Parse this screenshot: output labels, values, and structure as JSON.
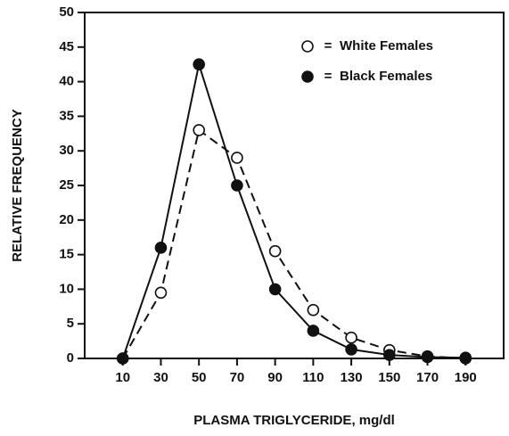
{
  "chart_data": {
    "type": "line",
    "x_label": "PLASMA TRIGLYCERIDE, mg/dl",
    "y_label": "RELATIVE FREQUENCY",
    "x": [
      10,
      30,
      50,
      70,
      90,
      110,
      130,
      150,
      170,
      190
    ],
    "series": [
      {
        "name": "White Females",
        "color": "#111111",
        "dashed": true,
        "marker": "open",
        "values": [
          0,
          9.5,
          33,
          29,
          15.5,
          7,
          3,
          1.2,
          0.3,
          0
        ]
      },
      {
        "name": "Black Females",
        "color": "#111111",
        "dashed": false,
        "marker": "filled",
        "values": [
          0,
          16,
          42.5,
          25,
          10,
          4,
          1.3,
          0.5,
          0.2,
          0.1
        ]
      }
    ],
    "legend_separator": "=",
    "legend": "upper right",
    "xlim": [
      -10,
      210
    ],
    "ylim": [
      0,
      50
    ],
    "xticks": [
      10,
      30,
      50,
      70,
      90,
      110,
      130,
      150,
      170,
      190
    ],
    "yticks": [
      0,
      5,
      10,
      15,
      20,
      25,
      30,
      35,
      40,
      45,
      50
    ]
  }
}
